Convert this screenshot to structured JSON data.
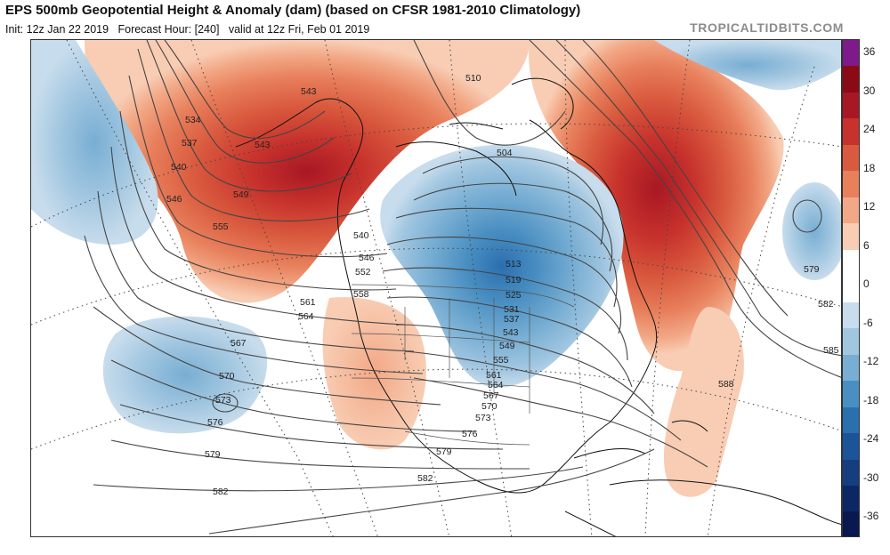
{
  "header": {
    "title": "EPS 500mb Geopotential Height & Anomaly (dam) (based on CFSR 1981-2010 Climatology)",
    "init_label": "Init: 12z Jan 22 2019",
    "forecast_hour_label": "Forecast Hour: [240]",
    "valid_label": "valid at 12z Fri, Feb 01 2019",
    "brand": "TROPICALTIDBITS.COM"
  },
  "colorbar": {
    "ticks": [
      "36",
      "30",
      "24",
      "18",
      "12",
      "6",
      "0",
      "-6",
      "-12",
      "-18",
      "-24",
      "-30",
      "-36"
    ],
    "colors": [
      "#7f1a8a",
      "#8b0a16",
      "#a81824",
      "#c7322c",
      "#d95a3e",
      "#e8805c",
      "#f2a886",
      "#f8cdb4",
      "#ffffff",
      "#ffffff",
      "#c7dcec",
      "#a1c6e0",
      "#78aed3",
      "#4a8fc2",
      "#2a6fae",
      "#1b5499",
      "#163d80",
      "#0d2766",
      "#0a1850"
    ]
  },
  "contour_labels": [
    {
      "text": "543"
    },
    {
      "text": "534"
    },
    {
      "text": "537"
    },
    {
      "text": "540"
    },
    {
      "text": "543"
    },
    {
      "text": "546"
    },
    {
      "text": "549"
    },
    {
      "text": "555"
    },
    {
      "text": "510"
    },
    {
      "text": "504"
    },
    {
      "text": "540"
    },
    {
      "text": "546"
    },
    {
      "text": "552"
    },
    {
      "text": "558"
    },
    {
      "text": "561"
    },
    {
      "text": "564"
    },
    {
      "text": "567"
    },
    {
      "text": "570"
    },
    {
      "text": "573"
    },
    {
      "text": "576"
    },
    {
      "text": "579"
    },
    {
      "text": "582"
    },
    {
      "text": "513"
    },
    {
      "text": "519"
    },
    {
      "text": "525"
    },
    {
      "text": "531"
    },
    {
      "text": "537"
    },
    {
      "text": "543"
    },
    {
      "text": "549"
    },
    {
      "text": "555"
    },
    {
      "text": "561"
    },
    {
      "text": "564"
    },
    {
      "text": "567"
    },
    {
      "text": "570"
    },
    {
      "text": "573"
    },
    {
      "text": "576"
    },
    {
      "text": "579"
    },
    {
      "text": "582"
    },
    {
      "text": "579"
    },
    {
      "text": "582"
    },
    {
      "text": "585"
    },
    {
      "text": "588"
    }
  ]
}
